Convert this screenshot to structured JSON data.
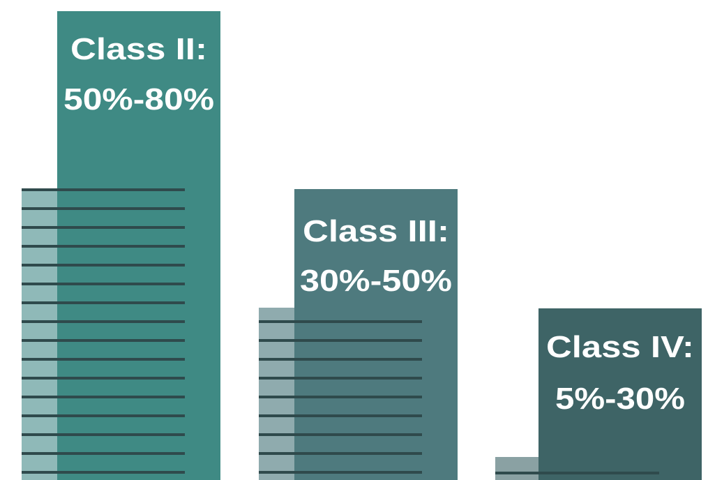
{
  "items": [
    {
      "title": "Class II:",
      "range": "50%-80%"
    },
    {
      "title": "Class III:",
      "range": "30%-50%"
    },
    {
      "title": "Class IV:",
      "range": "5%-30%"
    }
  ]
}
